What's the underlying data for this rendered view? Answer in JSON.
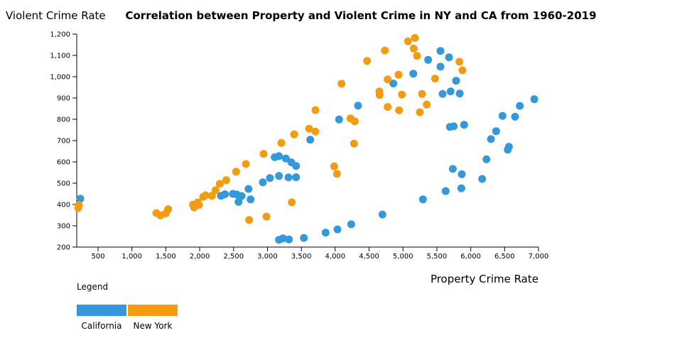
{
  "chart_data": {
    "type": "scatter",
    "title": "Correlation between Property and Violent Crime in NY and CA from 1960-2019",
    "xlabel": "Property Crime Rate",
    "ylabel": "Violent Crime Rate",
    "xlim": [
      185,
      7000
    ],
    "ylim": [
      200,
      1200
    ],
    "x_ticks": [
      "500",
      "1,000",
      "1,500",
      "2,000",
      "2,500",
      "3,000",
      "3,500",
      "4,000",
      "4,500",
      "5,000",
      "5,500",
      "6,000",
      "6,500",
      "7,000"
    ],
    "x_tick_values": [
      500,
      1000,
      1500,
      2000,
      2500,
      3000,
      3500,
      4000,
      4500,
      5000,
      5500,
      6000,
      6500,
      7000
    ],
    "y_ticks": [
      "200",
      "300",
      "400",
      "500",
      "600",
      "700",
      "800",
      "900",
      "1,000",
      "1,100",
      "1,200"
    ],
    "y_tick_values": [
      200,
      300,
      400,
      500,
      600,
      700,
      800,
      900,
      1000,
      1100,
      1200
    ],
    "grid": false,
    "legend": {
      "title": "Legend",
      "placement": "bottom-left"
    },
    "series": [
      {
        "name": "California",
        "color": "#3498db",
        "points": [
          [
            238,
            427
          ],
          [
            2314,
            441
          ],
          [
            2373,
            448
          ],
          [
            2489,
            450
          ],
          [
            2545,
            447
          ],
          [
            2618,
            440
          ],
          [
            2573,
            412
          ],
          [
            2720,
            473
          ],
          [
            2751,
            424
          ],
          [
            2932,
            504
          ],
          [
            3036,
            524
          ],
          [
            3170,
            534
          ],
          [
            3310,
            527
          ],
          [
            3422,
            528
          ],
          [
            3107,
            622
          ],
          [
            3170,
            627
          ],
          [
            3271,
            616
          ],
          [
            3352,
            598
          ],
          [
            3422,
            581
          ],
          [
            3631,
            704
          ],
          [
            3170,
            234
          ],
          [
            3229,
            241
          ],
          [
            3317,
            236
          ],
          [
            3537,
            243
          ],
          [
            3858,
            268
          ],
          [
            4033,
            283
          ],
          [
            4236,
            307
          ],
          [
            4697,
            353
          ],
          [
            5295,
            424
          ],
          [
            5630,
            463
          ],
          [
            5861,
            476
          ],
          [
            5868,
            542
          ],
          [
            5735,
            567
          ],
          [
            6169,
            520
          ],
          [
            6232,
            612
          ],
          [
            6298,
            707
          ],
          [
            6374,
            744
          ],
          [
            6546,
            657
          ],
          [
            6563,
            671
          ],
          [
            6469,
            816
          ],
          [
            6654,
            812
          ],
          [
            6724,
            863
          ],
          [
            6938,
            894
          ],
          [
            5693,
            764
          ],
          [
            5749,
            767
          ],
          [
            5902,
            774
          ],
          [
            4057,
            799
          ],
          [
            4337,
            864
          ],
          [
            4858,
            968
          ],
          [
            5152,
            1014
          ],
          [
            5372,
            1079
          ],
          [
            5553,
            1121
          ],
          [
            5553,
            1047
          ],
          [
            5679,
            1091
          ],
          [
            5784,
            981
          ],
          [
            5585,
            919
          ],
          [
            5703,
            931
          ],
          [
            5837,
            921
          ]
        ]
      },
      {
        "name": "New York",
        "color": "#f39c12",
        "points": [
          [
            207,
            384
          ],
          [
            217,
            398
          ],
          [
            1360,
            360
          ],
          [
            1422,
            349
          ],
          [
            1499,
            358
          ],
          [
            1534,
            378
          ],
          [
            1901,
            399
          ],
          [
            1918,
            386
          ],
          [
            1971,
            410
          ],
          [
            1989,
            398
          ],
          [
            2052,
            436
          ],
          [
            2087,
            443
          ],
          [
            2181,
            441
          ],
          [
            2233,
            467
          ],
          [
            2296,
            497
          ],
          [
            2391,
            514
          ],
          [
            2537,
            554
          ],
          [
            2681,
            590
          ],
          [
            2943,
            638
          ],
          [
            3205,
            689
          ],
          [
            3394,
            729
          ],
          [
            3614,
            756
          ],
          [
            3708,
            742
          ],
          [
            2730,
            327
          ],
          [
            2985,
            343
          ],
          [
            3359,
            410
          ],
          [
            4093,
            967
          ],
          [
            4470,
            1074
          ],
          [
            4732,
            1123
          ],
          [
            5074,
            1166
          ],
          [
            5176,
            1182
          ],
          [
            5158,
            1132
          ],
          [
            5207,
            1098
          ],
          [
            4774,
            987
          ],
          [
            4935,
            1009
          ],
          [
            4652,
            931
          ],
          [
            4655,
            914
          ],
          [
            4984,
            916
          ],
          [
            5281,
            919
          ],
          [
            5473,
            991
          ],
          [
            5833,
            1070
          ],
          [
            5878,
            1030
          ],
          [
            4774,
            858
          ],
          [
            4942,
            842
          ],
          [
            5249,
            833
          ],
          [
            5351,
            869
          ],
          [
            3708,
            843
          ],
          [
            4225,
            804
          ],
          [
            4288,
            790
          ],
          [
            4278,
            686
          ],
          [
            3984,
            579
          ],
          [
            4026,
            544
          ]
        ]
      }
    ]
  }
}
